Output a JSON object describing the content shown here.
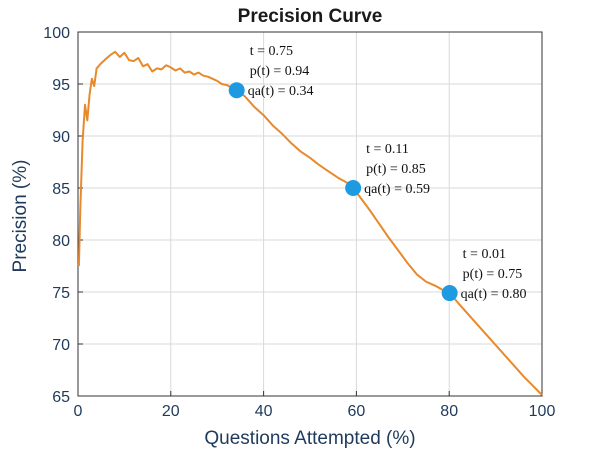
{
  "chart_data": {
    "type": "line",
    "title": "Precision Curve",
    "xlabel": "Questions Attempted (%)",
    "ylabel": "Precision (%)",
    "xlim": [
      0,
      100
    ],
    "ylim": [
      65,
      100
    ],
    "xticks": [
      0,
      20,
      40,
      60,
      80,
      100
    ],
    "yticks": [
      65,
      70,
      75,
      80,
      85,
      90,
      95,
      100
    ],
    "grid": true,
    "line_color": "#E8892B",
    "marker_color": "#1E9BE0",
    "series": [
      {
        "x": [
          0.2,
          0.5,
          1,
          1.5,
          2,
          2.5,
          3,
          3.5,
          4,
          5,
          6,
          7,
          8,
          9,
          10,
          11,
          12,
          13,
          14,
          15,
          16,
          17,
          18,
          19,
          20,
          21,
          22,
          23,
          24,
          25,
          26,
          27,
          28,
          29,
          30,
          31,
          32,
          33,
          34.2,
          36,
          38,
          40,
          42,
          44,
          46,
          48,
          50,
          52,
          54,
          56,
          58,
          59.3,
          61,
          63,
          65,
          67,
          69,
          71,
          73,
          75,
          77,
          79,
          80.1,
          82,
          84,
          86,
          88,
          90,
          92,
          94,
          96,
          98,
          100
        ],
        "y": [
          77.5,
          83,
          89.5,
          93,
          91.5,
          94,
          95.5,
          94.8,
          96.5,
          97,
          97.4,
          97.8,
          98.1,
          97.6,
          98,
          97.3,
          97.2,
          97.5,
          96.7,
          96.9,
          96.2,
          96.5,
          96.4,
          96.8,
          96.6,
          96.3,
          96.5,
          96.1,
          96.2,
          95.9,
          96.1,
          95.8,
          95.7,
          95.5,
          95.3,
          95.0,
          94.9,
          94.7,
          94.4,
          93.8,
          92.8,
          92.0,
          91.0,
          90.2,
          89.3,
          88.5,
          87.9,
          87.2,
          86.6,
          86.0,
          85.5,
          85.0,
          84.0,
          82.8,
          81.5,
          80.2,
          79.0,
          77.8,
          76.7,
          76.0,
          75.6,
          75.1,
          74.9,
          73.9,
          72.9,
          71.9,
          70.9,
          69.9,
          68.9,
          67.9,
          66.9,
          66.0,
          65.1
        ]
      }
    ],
    "markers": [
      {
        "x": 34.2,
        "y": 94.4,
        "lines": [
          "t = 0.75",
          "p(t) = 0.94",
          "qa(t) = 0.34"
        ]
      },
      {
        "x": 59.3,
        "y": 85.0,
        "lines": [
          "t = 0.11",
          "p(t) = 0.85",
          "qa(t) = 0.59"
        ]
      },
      {
        "x": 80.1,
        "y": 74.9,
        "lines": [
          "t = 0.01",
          "p(t) = 0.75",
          "qa(t) = 0.80"
        ]
      }
    ]
  }
}
